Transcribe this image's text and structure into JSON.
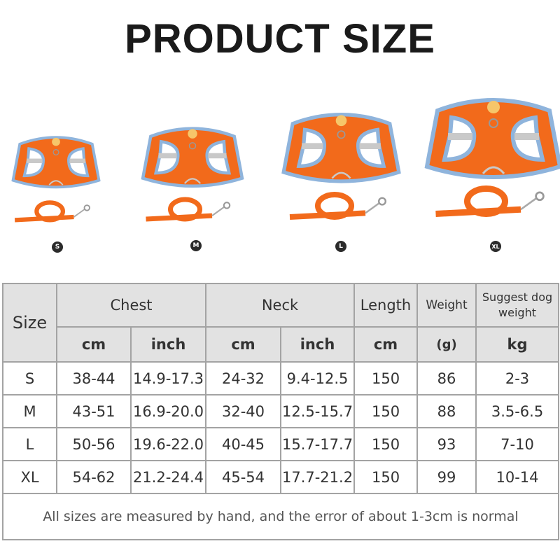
{
  "title": "PRODUCT SIZE",
  "products": [
    {
      "size": "S"
    },
    {
      "size": "M"
    },
    {
      "size": "L"
    },
    {
      "size": "XL"
    }
  ],
  "colors": {
    "harness": "#f26a1b",
    "trim": "#8fb4dc",
    "strap": "#c9c9c9"
  },
  "table": {
    "headers": {
      "size": "Size",
      "chest": "Chest",
      "neck": "Neck",
      "length": "Length",
      "weight": "Weight",
      "dog_weight": "Suggest dog weight"
    },
    "units": {
      "chest_cm": "cm",
      "chest_inch": "inch",
      "neck_cm": "cm",
      "neck_inch": "inch",
      "length": "cm",
      "weight": "(g)",
      "dog_weight": "kg"
    },
    "rows": [
      {
        "size": "S",
        "chest_cm": "38-44",
        "chest_inch": "14.9-17.3",
        "neck_cm": "24-32",
        "neck_inch": "9.4-12.5",
        "length": "150",
        "weight": "86",
        "dog_weight": "2-3"
      },
      {
        "size": "M",
        "chest_cm": "43-51",
        "chest_inch": "16.9-20.0",
        "neck_cm": "32-40",
        "neck_inch": "12.5-15.7",
        "length": "150",
        "weight": "88",
        "dog_weight": "3.5-6.5"
      },
      {
        "size": "L",
        "chest_cm": "50-56",
        "chest_inch": "19.6-22.0",
        "neck_cm": "40-45",
        "neck_inch": "15.7-17.7",
        "length": "150",
        "weight": "93",
        "dog_weight": "7-10"
      },
      {
        "size": "XL",
        "chest_cm": "54-62",
        "chest_inch": "21.2-24.4",
        "neck_cm": "45-54",
        "neck_inch": "17.7-21.2",
        "length": "150",
        "weight": "99",
        "dog_weight": "10-14"
      }
    ],
    "footnote": "All sizes are measured by hand, and the error of about 1-3cm is normal"
  }
}
